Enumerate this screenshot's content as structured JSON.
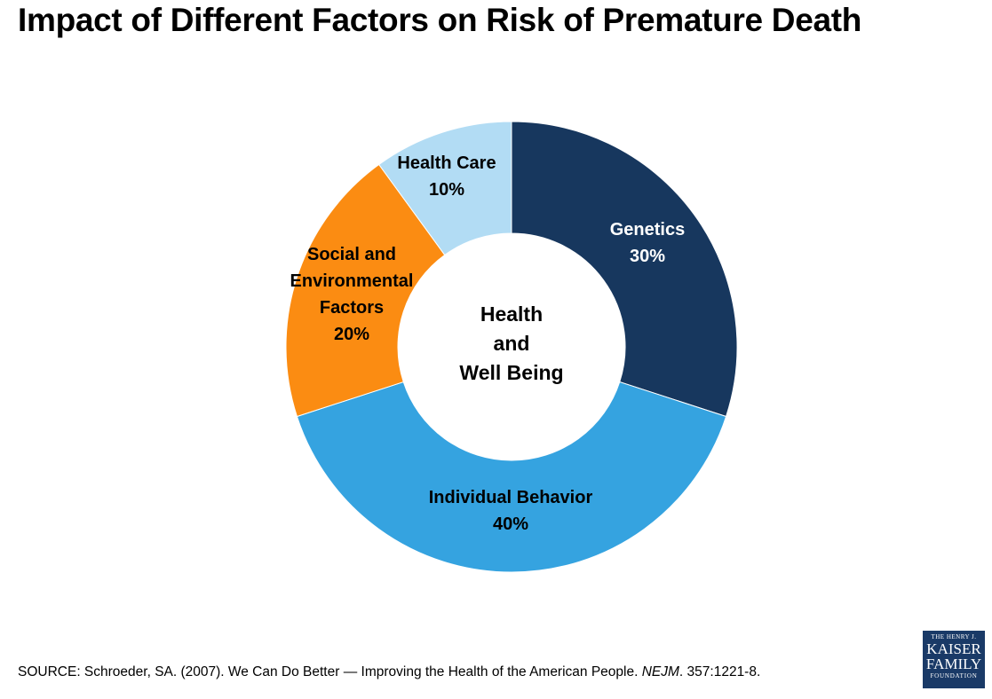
{
  "chart_data": {
    "type": "pie",
    "donut": true,
    "title": "Impact of Different Factors on Risk of Premature Death",
    "center_label": [
      "Health",
      "and",
      "Well Being"
    ],
    "series": [
      {
        "label_lines": [
          "Genetics"
        ],
        "value_label": "30%",
        "value": 30,
        "color": "#17375e",
        "text_color": "#ffffff"
      },
      {
        "label_lines": [
          "Individual Behavior"
        ],
        "value_label": "40%",
        "value": 40,
        "color": "#35a3e0",
        "text_color": "#000000"
      },
      {
        "label_lines": [
          "Social and",
          "Environmental",
          "Factors"
        ],
        "value_label": "20%",
        "value": 20,
        "color": "#fb8c12",
        "text_color": "#000000"
      },
      {
        "label_lines": [
          "Health Care"
        ],
        "value_label": "10%",
        "value": 10,
        "color": "#b2dcf4",
        "text_color": "#000000"
      }
    ]
  },
  "source": {
    "prefix": "SOURCE: Schroeder, SA. (2007). We Can Do Better — Improving the Health of the American People. ",
    "journal": "NEJM",
    "suffix": ". 357:1221-8."
  },
  "logo": {
    "line1": "THE HENRY J.",
    "line2": "KAISER",
    "line3": "FAMILY",
    "line4": "FOUNDATION"
  },
  "colors": {
    "background": "#ffffff",
    "logo_bg": "#1a3a67"
  }
}
